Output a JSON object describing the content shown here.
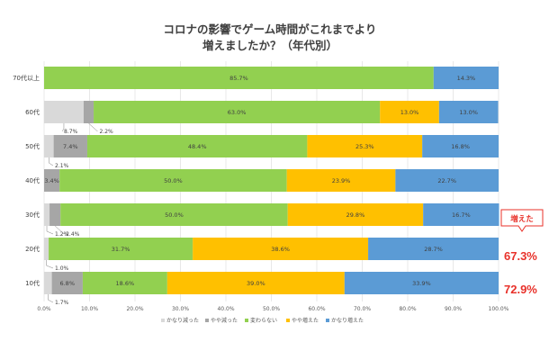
{
  "chart_data": {
    "type": "bar",
    "orientation": "horizontal-stacked-percent",
    "title": "コロナの影響でゲーム時間がこれまでより",
    "subtitle": "増えましたか？（年代別）",
    "categories": [
      "70代以上",
      "60代",
      "50代",
      "40代",
      "30代",
      "20代",
      "10代"
    ],
    "series": [
      {
        "name": "かなり減った",
        "color": "#d9d9d9",
        "values": [
          0,
          8.7,
          2.1,
          0,
          1.2,
          1.0,
          1.7
        ]
      },
      {
        "name": "やや減った",
        "color": "#a6a6a6",
        "values": [
          0,
          2.2,
          7.4,
          3.4,
          2.4,
          0,
          6.8
        ]
      },
      {
        "name": "変わらない",
        "color": "#92d050",
        "values": [
          85.7,
          63.0,
          48.4,
          50.0,
          50.0,
          31.7,
          18.6
        ]
      },
      {
        "name": "やや増えた",
        "color": "#ffc000",
        "values": [
          0,
          13.0,
          25.3,
          23.9,
          29.8,
          38.6,
          39.0
        ]
      },
      {
        "name": "かなり増えた",
        "color": "#5b9bd5",
        "values": [
          14.3,
          13.0,
          16.8,
          22.7,
          16.7,
          28.7,
          33.9
        ]
      }
    ],
    "value_labels": [
      [
        "",
        "",
        "85.7%",
        "",
        "14.3%"
      ],
      [
        "8.7%",
        "2.2%",
        "63.0%",
        "13.0%",
        "13.0%"
      ],
      [
        "2.1%",
        "7.4%",
        "48.4%",
        "25.3%",
        "16.8%"
      ],
      [
        "",
        "3.4%",
        "50.0%",
        "23.9%",
        "22.7%"
      ],
      [
        "1.2%",
        "2.4%",
        "50.0%",
        "29.8%",
        "16.7%"
      ],
      [
        "1.0%",
        "",
        "31.7%",
        "38.6%",
        "28.7%"
      ],
      [
        "1.7%",
        "6.8%",
        "18.6%",
        "39.0%",
        "33.9%"
      ]
    ],
    "x_ticks": [
      "0.0%",
      "10.0%",
      "20.0%",
      "30.0%",
      "40.0%",
      "50.0%",
      "60.0%",
      "70.0%",
      "80.0%",
      "90.0%",
      "100.0%"
    ],
    "xlim": [
      0,
      100
    ],
    "legend": [
      "かなり減った",
      "やや減った",
      "変わらない",
      "やや増えた",
      "かなり増えた"
    ],
    "legend_position": "bottom",
    "annotations": {
      "callout": "増えた",
      "row_totals": [
        {
          "category": "20代",
          "text": "67.3%"
        },
        {
          "category": "10代",
          "text": "72.9%"
        }
      ]
    }
  }
}
